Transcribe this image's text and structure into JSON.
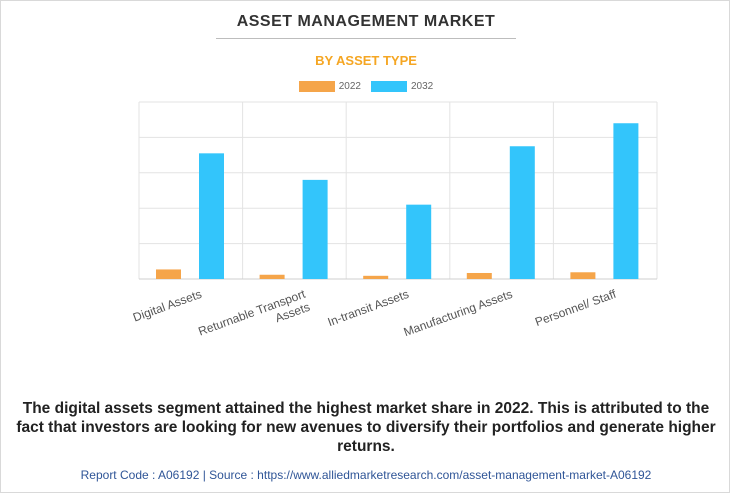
{
  "header": {
    "title": "ASSET MANAGEMENT MARKET",
    "subtitle": "BY ASSET TYPE"
  },
  "colors": {
    "series_2022": "#f5a54a",
    "series_2032": "#33c5fb",
    "subtitle": "#f5a623",
    "source": "#2f5597"
  },
  "chart_data": {
    "type": "bar",
    "categories": [
      "Digital Assets",
      "Returnable Transport Assets",
      "In-transit Assets",
      "Manufacturing Assets",
      "Personnel/ Staff"
    ],
    "category_lines": [
      [
        "Digital Assets"
      ],
      [
        "Returnable Transport",
        "Assets"
      ],
      [
        "In-transit Assets"
      ],
      [
        "Manufacturing Assets"
      ],
      [
        "Personnel/ Staff"
      ]
    ],
    "series": [
      {
        "name": "2022",
        "values": [
          0.27,
          0.12,
          0.09,
          0.17,
          0.19
        ]
      },
      {
        "name": "2032",
        "values": [
          3.55,
          2.8,
          2.1,
          3.75,
          4.4
        ]
      }
    ],
    "ylim": [
      0,
      5
    ],
    "gridlines": 5,
    "grid": true,
    "legend": "top-center",
    "title": "ASSET MANAGEMENT MARKET",
    "subtitle": "BY ASSET TYPE",
    "xlabel": "",
    "ylabel": ""
  },
  "caption": "The digital assets segment attained the highest market share in 2022. This is attributed to the fact that investors are looking for new avenues to diversify their portfolios and generate higher returns.",
  "source_line": "Report Code : A06192  |  Source : https://www.alliedmarketresearch.com/asset-management-market-A06192"
}
